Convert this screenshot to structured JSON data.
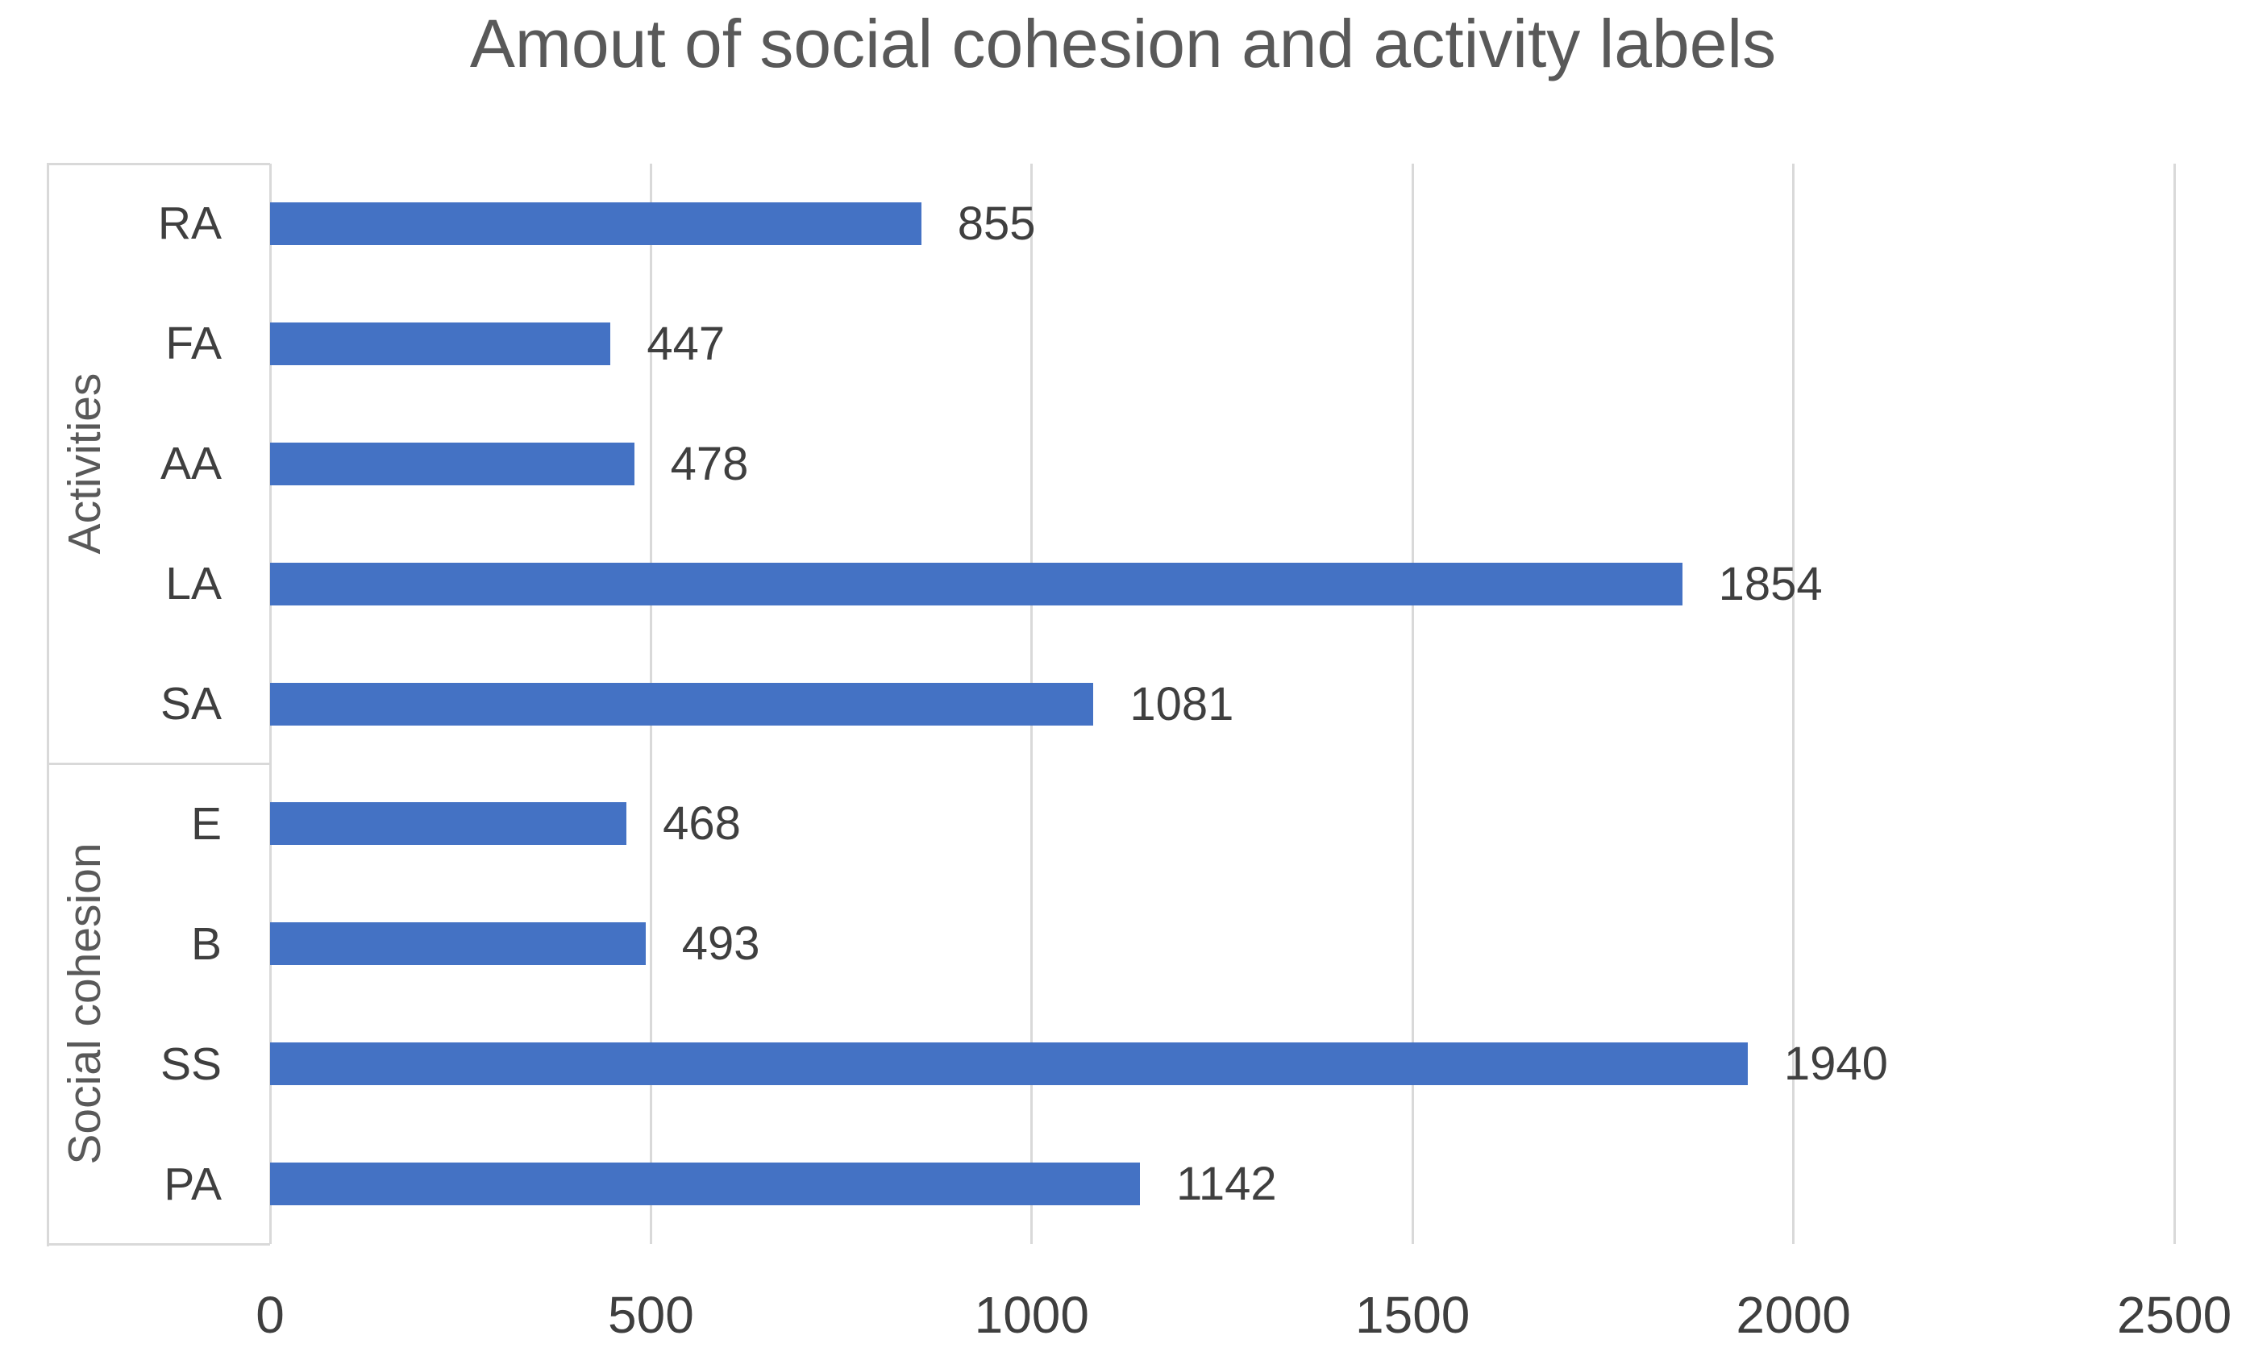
{
  "chart_data": {
    "type": "bar",
    "orientation": "horizontal",
    "title": "Amout of social cohesion and activity labels",
    "groups": [
      {
        "label": "Activities",
        "categories": [
          "RA",
          "FA",
          "AA",
          "LA",
          "SA"
        ],
        "values": [
          855,
          447,
          478,
          1854,
          1081
        ]
      },
      {
        "label": "Social cohesion",
        "categories": [
          "E",
          "B",
          "SS",
          "PA"
        ],
        "values": [
          468,
          493,
          1940,
          1142
        ]
      }
    ],
    "data_labels": [
      "855",
      "447",
      "478",
      "1854",
      "1081",
      "468",
      "493",
      "1940",
      "1142"
    ],
    "xlabel": "",
    "ylabel": "",
    "xlim": [
      0,
      2500
    ],
    "x_ticks": [
      0,
      500,
      1000,
      1500,
      2000,
      2500
    ],
    "x_tick_labels": [
      "0",
      "500",
      "1000",
      "1500",
      "2000",
      "2500"
    ],
    "grid": "vertical",
    "legend": "none",
    "colors": {
      "bar": "#4472C4",
      "gridline": "#D9D9D9",
      "title_text": "#595959",
      "label_text": "#3F3F3F",
      "group_label_text": "#595959"
    }
  }
}
